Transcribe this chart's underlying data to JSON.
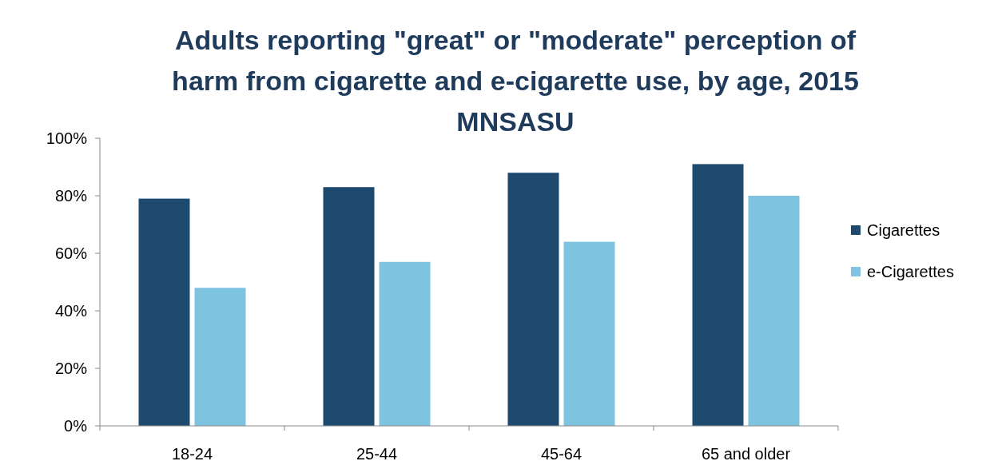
{
  "chart_data": {
    "type": "bar",
    "title": "Adults reporting \"great\" or \"moderate\" perception of harm from cigarette and e-cigarette use, by age, 2015 MNSASU",
    "categories": [
      "18-24",
      "25-44",
      "45-64",
      "65 and older"
    ],
    "series": [
      {
        "name": "Cigarettes",
        "color": "#1f4a70",
        "values": [
          79,
          83,
          88,
          91
        ]
      },
      {
        "name": "e-Cigarettes",
        "color": "#7ec3df",
        "values": [
          48,
          57,
          64,
          80
        ]
      }
    ],
    "ylim": [
      0,
      100
    ],
    "yticks": [
      {
        "value": 0,
        "label": "0%"
      },
      {
        "value": 20,
        "label": "20%"
      },
      {
        "value": 40,
        "label": "40%"
      },
      {
        "value": 60,
        "label": "60%"
      },
      {
        "value": 80,
        "label": "80%"
      },
      {
        "value": 100,
        "label": "100%"
      }
    ],
    "grid": false,
    "legend": "right"
  }
}
